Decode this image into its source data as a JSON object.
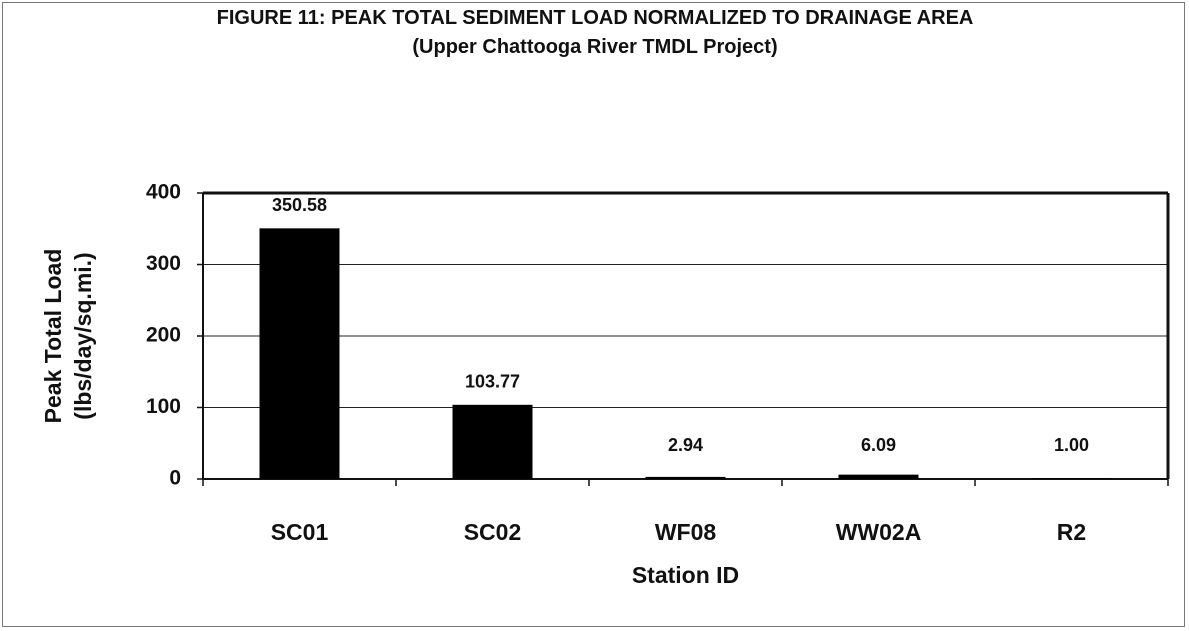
{
  "chart_data": {
    "type": "bar",
    "title": "FIGURE 11:  PEAK TOTAL SEDIMENT LOAD NORMALIZED TO DRAINAGE AREA",
    "subtitle": "(Upper Chattooga River TMDL Project)",
    "x_label": "Station ID",
    "y_label": [
      "Peak Total Load",
      "(lbs/day/sq.mi.)"
    ],
    "categories": [
      "SC01",
      "SC02",
      "WF08",
      "WW02A",
      "R2"
    ],
    "values": [
      350.58,
      103.77,
      2.94,
      6.09,
      1.0
    ],
    "value_labels": [
      "350.58",
      "103.77",
      "2.94",
      "6.09",
      "1.00"
    ],
    "color": "#000000",
    "ylim": [
      0,
      400
    ],
    "yticks": [
      0,
      100,
      200,
      300,
      400
    ],
    "grid": true
  }
}
